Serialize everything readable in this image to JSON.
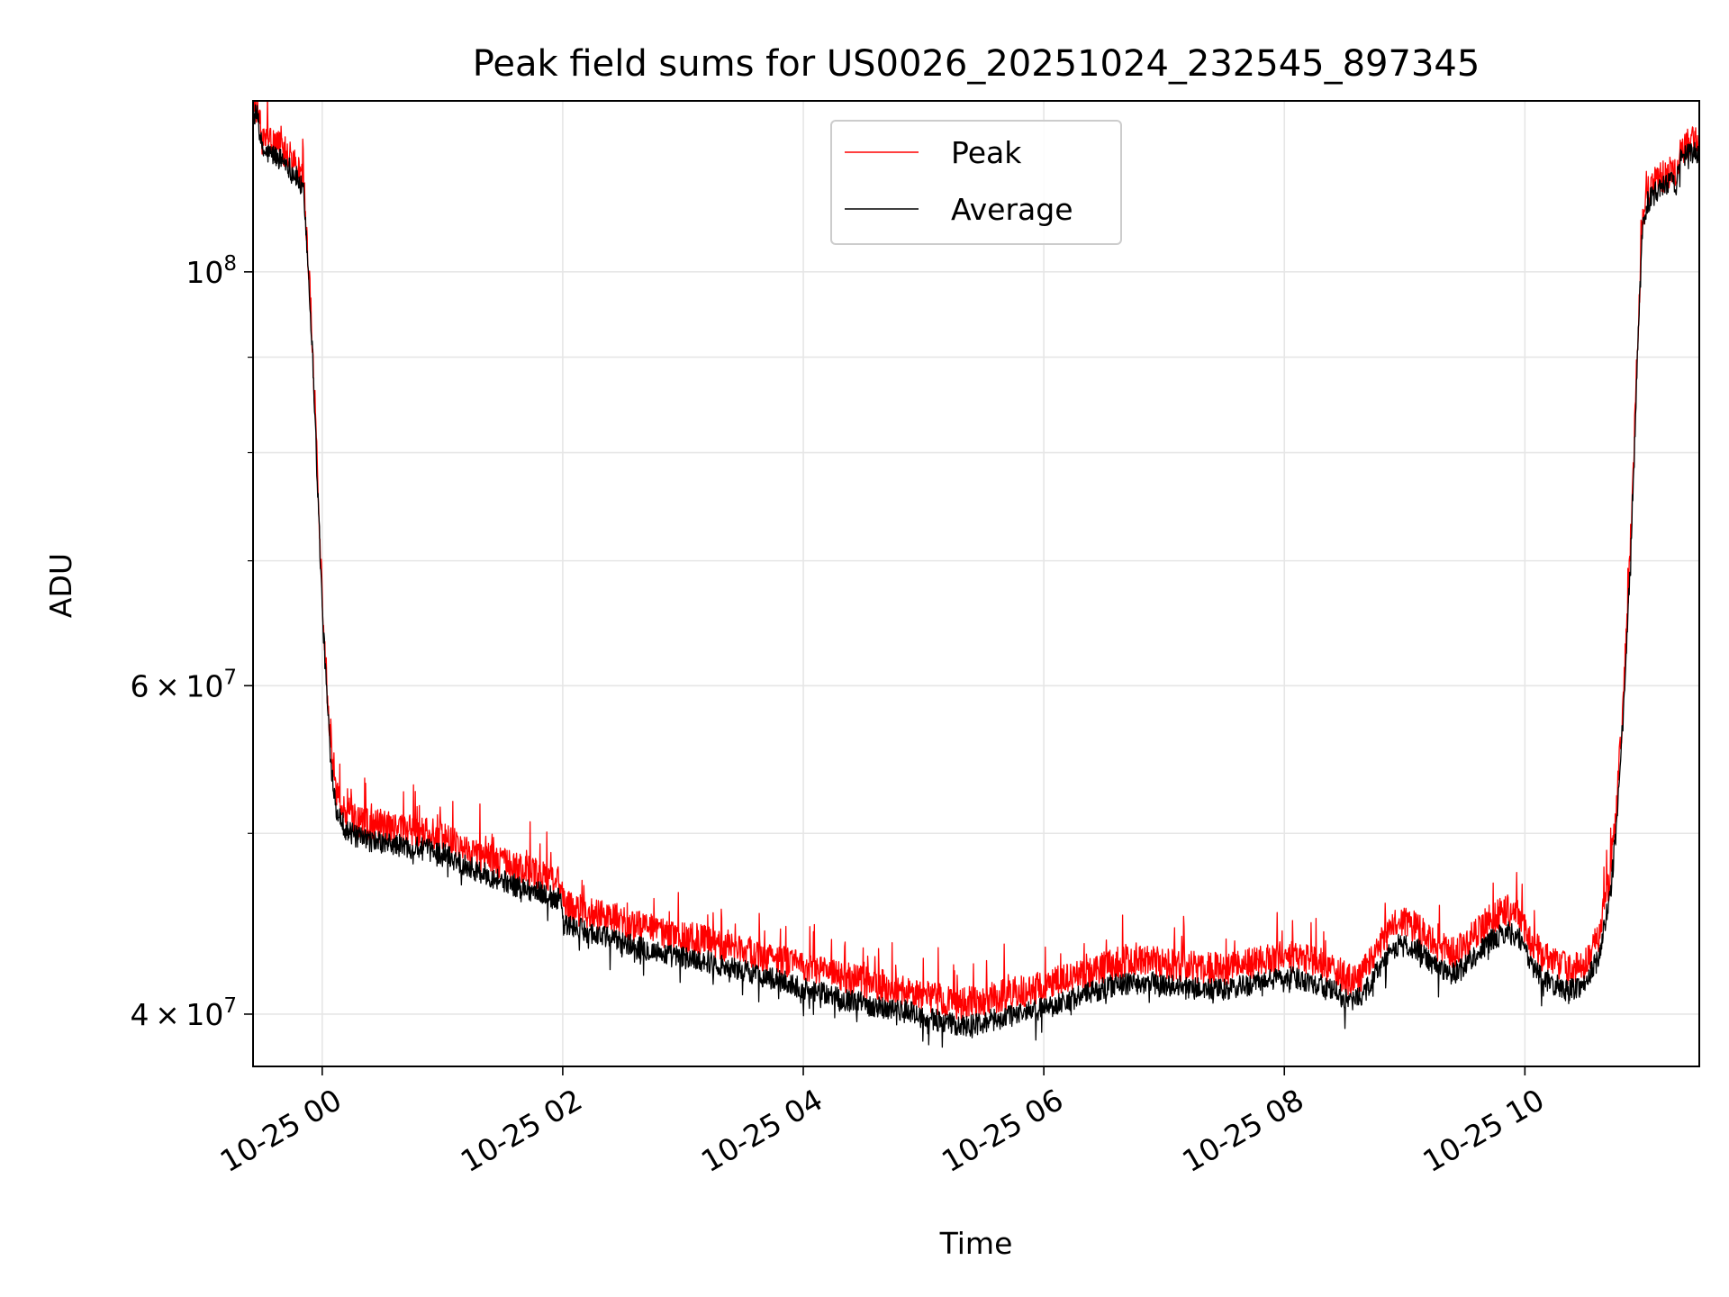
{
  "chart_data": {
    "type": "line",
    "title": "Peak field sums for US0026_20251024_232545_897345",
    "xlabel": "Time",
    "ylabel": "ADU",
    "xscale": "time",
    "yscale": "log",
    "xlim_hours": [
      23.425,
      35.45
    ],
    "ylim": [
      37500000,
      123500000
    ],
    "grid": true,
    "legend_loc": "upper center",
    "x_ticks": [
      {
        "value": 24,
        "label": "10-25 00"
      },
      {
        "value": 26,
        "label": "10-25 02"
      },
      {
        "value": 28,
        "label": "10-25 04"
      },
      {
        "value": 30,
        "label": "10-25 06"
      },
      {
        "value": 32,
        "label": "10-25 08"
      },
      {
        "value": 34,
        "label": "10-25 10"
      }
    ],
    "y_major_ticks": [
      {
        "value": 100000000,
        "base": "10",
        "exp": "8",
        "mantissa": ""
      },
      {
        "value": 60000000,
        "base": "10",
        "exp": "7",
        "mantissa": "6"
      },
      {
        "value": 40000000,
        "base": "10",
        "exp": "7",
        "mantissa": "4"
      }
    ],
    "y_minor_ticks": [
      50000000,
      70000000,
      80000000,
      90000000
    ],
    "times_label": "×",
    "legend": [
      {
        "name": "Peak",
        "color": "#ff0000"
      },
      {
        "name": "Average",
        "color": "#000000"
      }
    ],
    "series": [
      {
        "name": "Average",
        "color": "#000000",
        "noise": 0.014,
        "points": [
          [
            23.425,
            121500000
          ],
          [
            23.47,
            121000000
          ],
          [
            23.5,
            116000000
          ],
          [
            23.6,
            115500000
          ],
          [
            23.7,
            114500000
          ],
          [
            23.8,
            112000000
          ],
          [
            23.85,
            110000000
          ],
          [
            23.87,
            104000000
          ],
          [
            23.9,
            96000000
          ],
          [
            23.93,
            87000000
          ],
          [
            23.96,
            77000000
          ],
          [
            24.0,
            66000000
          ],
          [
            24.04,
            59000000
          ],
          [
            24.08,
            54000000
          ],
          [
            24.12,
            51500000
          ],
          [
            24.2,
            50200000
          ],
          [
            24.3,
            49700000
          ],
          [
            24.5,
            49400000
          ],
          [
            24.8,
            49100000
          ],
          [
            25.0,
            48800000
          ],
          [
            25.3,
            47700000
          ],
          [
            25.6,
            46900000
          ],
          [
            25.9,
            46300000
          ],
          [
            25.99,
            46000000
          ],
          [
            26.01,
            44700000
          ],
          [
            26.3,
            44100000
          ],
          [
            26.6,
            43500000
          ],
          [
            26.9,
            43000000
          ],
          [
            27.2,
            42700000
          ],
          [
            27.5,
            42200000
          ],
          [
            27.8,
            41700000
          ],
          [
            28.0,
            41300000
          ],
          [
            28.3,
            40800000
          ],
          [
            28.6,
            40400000
          ],
          [
            28.9,
            40100000
          ],
          [
            29.1,
            39700000
          ],
          [
            29.3,
            39400000
          ],
          [
            29.5,
            39600000
          ],
          [
            29.7,
            39900000
          ],
          [
            30.0,
            40300000
          ],
          [
            30.3,
            40900000
          ],
          [
            30.6,
            41500000
          ],
          [
            30.9,
            41600000
          ],
          [
            31.2,
            41300000
          ],
          [
            31.5,
            41200000
          ],
          [
            31.8,
            41600000
          ],
          [
            32.0,
            41900000
          ],
          [
            32.2,
            41700000
          ],
          [
            32.4,
            41200000
          ],
          [
            32.55,
            40600000
          ],
          [
            32.65,
            40900000
          ],
          [
            32.8,
            42500000
          ],
          [
            32.95,
            43600000
          ],
          [
            33.1,
            43400000
          ],
          [
            33.25,
            42500000
          ],
          [
            33.4,
            42000000
          ],
          [
            33.55,
            42800000
          ],
          [
            33.7,
            43700000
          ],
          [
            33.85,
            44300000
          ],
          [
            33.95,
            44000000
          ],
          [
            34.05,
            42500000
          ],
          [
            34.2,
            41600000
          ],
          [
            34.35,
            41200000
          ],
          [
            34.5,
            41500000
          ],
          [
            34.62,
            43000000
          ],
          [
            34.7,
            46000000
          ],
          [
            34.76,
            50000000
          ],
          [
            34.82,
            58000000
          ],
          [
            34.87,
            68000000
          ],
          [
            34.91,
            80000000
          ],
          [
            34.95,
            95000000
          ],
          [
            34.98,
            106000000
          ],
          [
            35.02,
            109000000
          ],
          [
            35.1,
            110500000
          ],
          [
            35.2,
            111500000
          ],
          [
            35.26,
            112000000
          ],
          [
            35.3,
            115000000
          ],
          [
            35.4,
            116000000
          ],
          [
            35.45,
            115500000
          ]
        ]
      },
      {
        "name": "Peak",
        "color": "#ff0000",
        "noise": 0.02,
        "points": [
          [
            23.425,
            122500000
          ],
          [
            23.47,
            122000000
          ],
          [
            23.5,
            117500000
          ],
          [
            23.6,
            117000000
          ],
          [
            23.7,
            116000000
          ],
          [
            23.8,
            113500000
          ],
          [
            23.85,
            111500000
          ],
          [
            23.87,
            105000000
          ],
          [
            23.9,
            97000000
          ],
          [
            23.93,
            88000000
          ],
          [
            23.96,
            78000000
          ],
          [
            24.0,
            67000000
          ],
          [
            24.04,
            60000000
          ],
          [
            24.08,
            55000000
          ],
          [
            24.12,
            52500000
          ],
          [
            24.2,
            51200000
          ],
          [
            24.3,
            50700000
          ],
          [
            24.5,
            50400000
          ],
          [
            24.8,
            50100000
          ],
          [
            25.0,
            49800000
          ],
          [
            25.3,
            48700000
          ],
          [
            25.6,
            47900000
          ],
          [
            25.9,
            47300000
          ],
          [
            25.99,
            47000000
          ],
          [
            26.01,
            45700000
          ],
          [
            26.3,
            45200000
          ],
          [
            26.6,
            44600000
          ],
          [
            26.9,
            44100000
          ],
          [
            27.2,
            43800000
          ],
          [
            27.5,
            43300000
          ],
          [
            27.8,
            42800000
          ],
          [
            28.0,
            42400000
          ],
          [
            28.3,
            41900000
          ],
          [
            28.6,
            41500000
          ],
          [
            28.9,
            41200000
          ],
          [
            29.1,
            40800000
          ],
          [
            29.3,
            40500000
          ],
          [
            29.5,
            40700000
          ],
          [
            29.7,
            41000000
          ],
          [
            30.0,
            41400000
          ],
          [
            30.3,
            42000000
          ],
          [
            30.6,
            42600000
          ],
          [
            30.9,
            42700000
          ],
          [
            31.2,
            42400000
          ],
          [
            31.5,
            42300000
          ],
          [
            31.8,
            42700000
          ],
          [
            32.0,
            43000000
          ],
          [
            32.2,
            42800000
          ],
          [
            32.4,
            42300000
          ],
          [
            32.55,
            41700000
          ],
          [
            32.65,
            42000000
          ],
          [
            32.8,
            43700000
          ],
          [
            32.95,
            44800000
          ],
          [
            33.1,
            44600000
          ],
          [
            33.25,
            43600000
          ],
          [
            33.4,
            43100000
          ],
          [
            33.55,
            43900000
          ],
          [
            33.7,
            44900000
          ],
          [
            33.85,
            45500000
          ],
          [
            33.95,
            45200000
          ],
          [
            34.05,
            43600000
          ],
          [
            34.2,
            42700000
          ],
          [
            34.35,
            42300000
          ],
          [
            34.5,
            42600000
          ],
          [
            34.62,
            44200000
          ],
          [
            34.7,
            47200000
          ],
          [
            34.76,
            51200000
          ],
          [
            34.82,
            59200000
          ],
          [
            34.87,
            69200000
          ],
          [
            34.91,
            81500000
          ],
          [
            34.95,
            96500000
          ],
          [
            34.98,
            107500000
          ],
          [
            35.02,
            110500000
          ],
          [
            35.1,
            112000000
          ],
          [
            35.2,
            113000000
          ],
          [
            35.26,
            113500000
          ],
          [
            35.3,
            116500000
          ],
          [
            35.4,
            117500000
          ],
          [
            35.45,
            117000000
          ]
        ]
      }
    ]
  }
}
